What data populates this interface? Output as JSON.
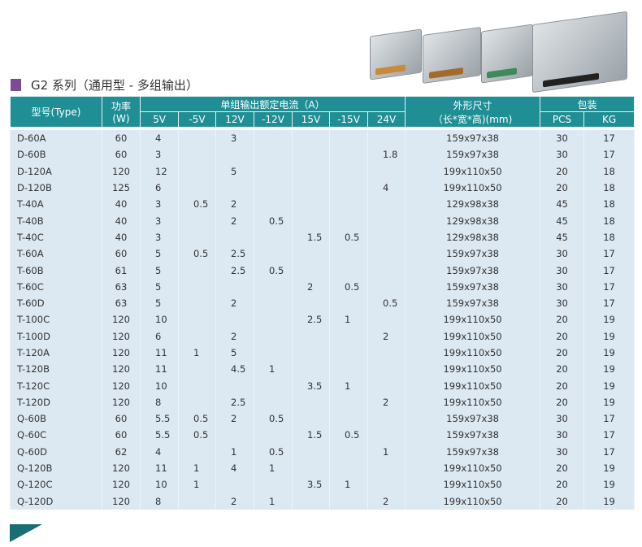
{
  "title": "G2 系列（通用型 - 多组输出）",
  "header": {
    "type": "型号(Type)",
    "power": "功率",
    "power_unit": "(W)",
    "current": "单组输出额定电流（A）",
    "voltages": [
      "5V",
      "-5V",
      "12V",
      "-12V",
      "15V",
      "-15V",
      "24V"
    ],
    "dims": "外形尺寸",
    "dims_unit": "（长*宽*高)(mm)",
    "pack": "包装",
    "pcs": "PCS",
    "kg": "KG"
  },
  "rows": [
    [
      "D-60A",
      "60",
      "4",
      "",
      "3",
      "",
      "",
      "",
      "",
      "159x97x38",
      "30",
      "17"
    ],
    [
      "D-60B",
      "60",
      "3",
      "",
      "",
      "",
      "",
      "",
      "1.8",
      "159x97x38",
      "30",
      "17"
    ],
    [
      "D-120A",
      "120",
      "12",
      "",
      "5",
      "",
      "",
      "",
      "",
      "199x110x50",
      "20",
      "18"
    ],
    [
      "D-120B",
      "125",
      "6",
      "",
      "",
      "",
      "",
      "",
      "4",
      "199x110x50",
      "20",
      "18"
    ],
    [
      "T-40A",
      "40",
      "3",
      "0.5",
      "2",
      "",
      "",
      "",
      "",
      "129x98x38",
      "45",
      "18"
    ],
    [
      "T-40B",
      "40",
      "3",
      "",
      "2",
      "0.5",
      "",
      "",
      "",
      "129x98x38",
      "45",
      "18"
    ],
    [
      "T-40C",
      "40",
      "3",
      "",
      "",
      "",
      "1.5",
      "0.5",
      "",
      "129x98x38",
      "45",
      "18"
    ],
    [
      "T-60A",
      "60",
      "5",
      "0.5",
      "2.5",
      "",
      "",
      "",
      "",
      "159x97x38",
      "30",
      "17"
    ],
    [
      "T-60B",
      "61",
      "5",
      "",
      "2.5",
      "0.5",
      "",
      "",
      "",
      "159x97x38",
      "30",
      "17"
    ],
    [
      "T-60C",
      "63",
      "5",
      "",
      "",
      "",
      "2",
      "0.5",
      "",
      "159x97x38",
      "30",
      "17"
    ],
    [
      "T-60D",
      "63",
      "5",
      "",
      "2",
      "",
      "",
      "",
      "0.5",
      "159x97x38",
      "30",
      "17"
    ],
    [
      "T-100C",
      "120",
      "10",
      "",
      "",
      "",
      "2.5",
      "1",
      "",
      "199x110x50",
      "20",
      "19"
    ],
    [
      "T-100D",
      "120",
      "6",
      "",
      "2",
      "",
      "",
      "",
      "2",
      "199x110x50",
      "20",
      "19"
    ],
    [
      "T-120A",
      "120",
      "11",
      "1",
      "5",
      "",
      "",
      "",
      "",
      "199x110x50",
      "20",
      "19"
    ],
    [
      "T-120B",
      "120",
      "11",
      "",
      "4.5",
      "1",
      "",
      "",
      "",
      "199x110x50",
      "20",
      "19"
    ],
    [
      "T-120C",
      "120",
      "10",
      "",
      "",
      "",
      "3.5",
      "1",
      "",
      "199x110x50",
      "20",
      "19"
    ],
    [
      "T-120D",
      "120",
      "8",
      "",
      "2.5",
      "",
      "",
      "",
      "2",
      "199x110x50",
      "20",
      "19"
    ],
    [
      "Q-60B",
      "60",
      "5.5",
      "0.5",
      "2",
      "0.5",
      "",
      "",
      "",
      "159x97x38",
      "30",
      "17"
    ],
    [
      "Q-60C",
      "60",
      "5.5",
      "0.5",
      "",
      "",
      "1.5",
      "0.5",
      "",
      "159x97x38",
      "30",
      "17"
    ],
    [
      "Q-60D",
      "62",
      "4",
      "",
      "1",
      "0.5",
      "",
      "",
      "1",
      "159x97x38",
      "30",
      "17"
    ],
    [
      "Q-120B",
      "120",
      "11",
      "1",
      "4",
      "1",
      "",
      "",
      "",
      "199x110x50",
      "20",
      "19"
    ],
    [
      "Q-120C",
      "120",
      "10",
      "1",
      "",
      "",
      "3.5",
      "1",
      "",
      "199x110x50",
      "20",
      "19"
    ],
    [
      "Q-120D",
      "120",
      "8",
      "",
      "2",
      "1",
      "",
      "",
      "2",
      "199x110x50",
      "20",
      "19"
    ]
  ]
}
